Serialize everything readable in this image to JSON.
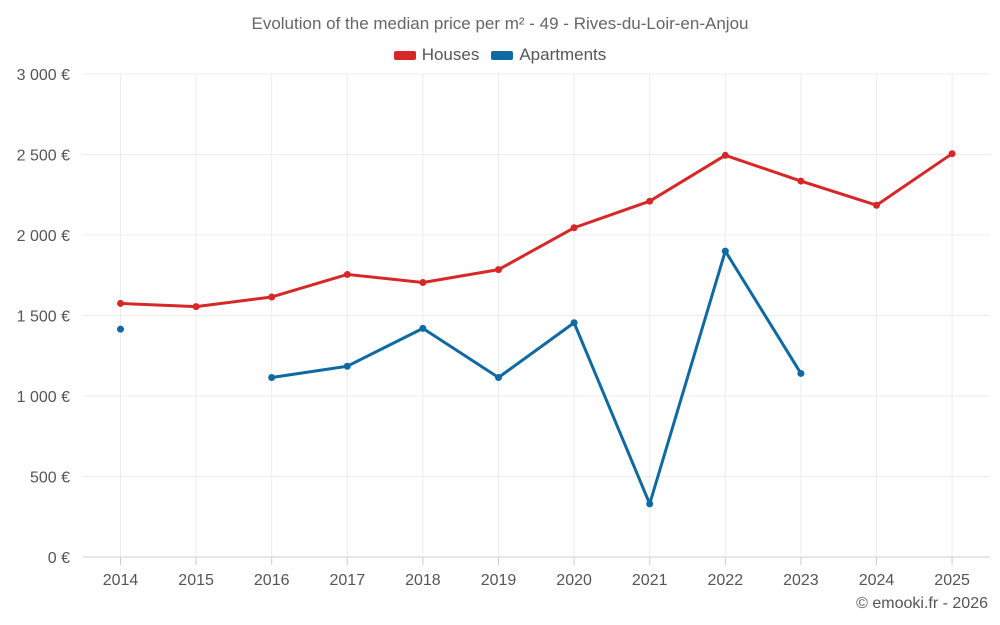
{
  "chart_data": {
    "type": "line",
    "title": "Evolution of the median price per m² - 49 - Rives-du-Loir-en-Anjou",
    "xlabel": "",
    "ylabel": "",
    "categories": [
      "2014",
      "2015",
      "2016",
      "2017",
      "2018",
      "2019",
      "2020",
      "2021",
      "2022",
      "2023",
      "2024",
      "2025"
    ],
    "ylim": [
      0,
      3000
    ],
    "yticks": [
      0,
      500,
      1000,
      1500,
      2000,
      2500,
      3000
    ],
    "ytick_labels": [
      "0 €",
      "500 €",
      "1 000 €",
      "1 500 €",
      "2 000 €",
      "2 500 €",
      "3 000 €"
    ],
    "grid": true,
    "legend_position": "top-center",
    "series": [
      {
        "name": "Houses",
        "color": "#d62828",
        "values": [
          1575,
          1555,
          1615,
          1755,
          1705,
          1785,
          2045,
          2210,
          2495,
          2335,
          2185,
          2505
        ]
      },
      {
        "name": "Apartments",
        "color": "#0e6aa0",
        "values": [
          1415,
          null,
          1115,
          1185,
          1420,
          1115,
          1455,
          330,
          1900,
          1140,
          null,
          null
        ]
      }
    ]
  },
  "footer": {
    "credit": "© emooki.fr - 2026"
  }
}
